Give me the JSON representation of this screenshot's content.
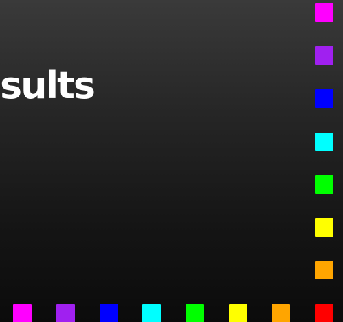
{
  "page": {
    "title_fragment": "sults"
  },
  "palette": {
    "right_column": [
      "#ff00ff",
      "#a020f0",
      "#0000ff",
      "#00ffff",
      "#00ff00",
      "#ffff00",
      "#ffa500"
    ],
    "bottom_row": [
      "#ff00ff",
      "#a020f0",
      "#0000ff",
      "#00ffff",
      "#00ff00",
      "#ffff00",
      "#ffa500",
      "#ff0000"
    ]
  }
}
